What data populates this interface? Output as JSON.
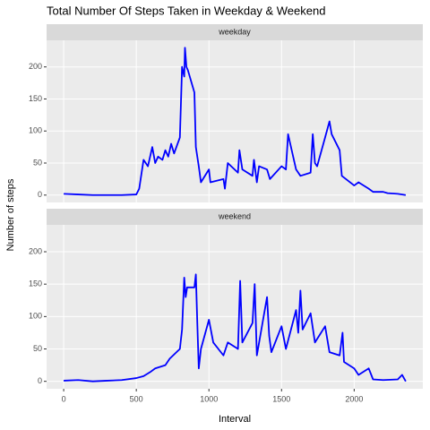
{
  "title": "Total Number Of Steps Taken in Weekday & Weekend",
  "x_label": "Interval",
  "y_label": "Number of steps",
  "chart_data": [
    {
      "type": "line",
      "facet": "weekday",
      "color": "#0000FF",
      "xlim": [
        -117.75,
        2472.75
      ],
      "xticks": [
        0,
        500,
        1000,
        1500,
        2000
      ],
      "ylim": [
        -11.5,
        241.5
      ],
      "yticks": [
        0,
        50,
        100,
        150,
        200
      ],
      "grid": true,
      "x": [
        0,
        100,
        200,
        300,
        400,
        500,
        520,
        550,
        580,
        610,
        630,
        650,
        680,
        700,
        720,
        740,
        760,
        800,
        815,
        830,
        835,
        845,
        855,
        900,
        910,
        930,
        945,
        1000,
        1010,
        1100,
        1110,
        1130,
        1200,
        1210,
        1230,
        1300,
        1310,
        1330,
        1345,
        1400,
        1420,
        1500,
        1530,
        1545,
        1600,
        1630,
        1700,
        1715,
        1730,
        1745,
        1800,
        1830,
        1845,
        1900,
        1915,
        2000,
        2030,
        2100,
        2130,
        2200,
        2230,
        2300,
        2355
      ],
      "values": [
        2,
        1,
        0,
        0,
        0,
        1,
        10,
        55,
        45,
        75,
        50,
        60,
        55,
        70,
        60,
        80,
        65,
        90,
        200,
        185,
        230,
        200,
        195,
        160,
        75,
        45,
        20,
        40,
        20,
        25,
        10,
        50,
        35,
        70,
        40,
        30,
        55,
        20,
        45,
        40,
        25,
        45,
        40,
        95,
        40,
        30,
        35,
        95,
        50,
        45,
        90,
        115,
        95,
        70,
        30,
        15,
        20,
        10,
        5,
        5,
        3,
        2,
        0
      ]
    },
    {
      "type": "line",
      "facet": "weekend",
      "color": "#0000FF",
      "xlim": [
        -117.75,
        2472.75
      ],
      "xticks": [
        0,
        500,
        1000,
        1500,
        2000
      ],
      "ylim": [
        -11.5,
        241.5
      ],
      "yticks": [
        0,
        50,
        100,
        150,
        200
      ],
      "grid": true,
      "x": [
        0,
        100,
        200,
        300,
        400,
        500,
        550,
        600,
        630,
        700,
        730,
        800,
        815,
        830,
        840,
        850,
        900,
        910,
        920,
        930,
        945,
        1000,
        1030,
        1100,
        1130,
        1200,
        1215,
        1230,
        1300,
        1315,
        1330,
        1400,
        1415,
        1430,
        1500,
        1530,
        1600,
        1615,
        1630,
        1645,
        1700,
        1730,
        1800,
        1830,
        1900,
        1920,
        1930,
        2000,
        2030,
        2100,
        2130,
        2200,
        2300,
        2330,
        2355
      ],
      "values": [
        1,
        2,
        0,
        1,
        2,
        5,
        8,
        15,
        20,
        25,
        35,
        50,
        80,
        160,
        130,
        145,
        145,
        165,
        90,
        20,
        50,
        95,
        60,
        40,
        60,
        50,
        155,
        60,
        90,
        150,
        40,
        130,
        70,
        45,
        85,
        50,
        110,
        75,
        140,
        80,
        105,
        60,
        85,
        45,
        40,
        75,
        30,
        20,
        10,
        20,
        3,
        2,
        3,
        10,
        0
      ]
    }
  ]
}
